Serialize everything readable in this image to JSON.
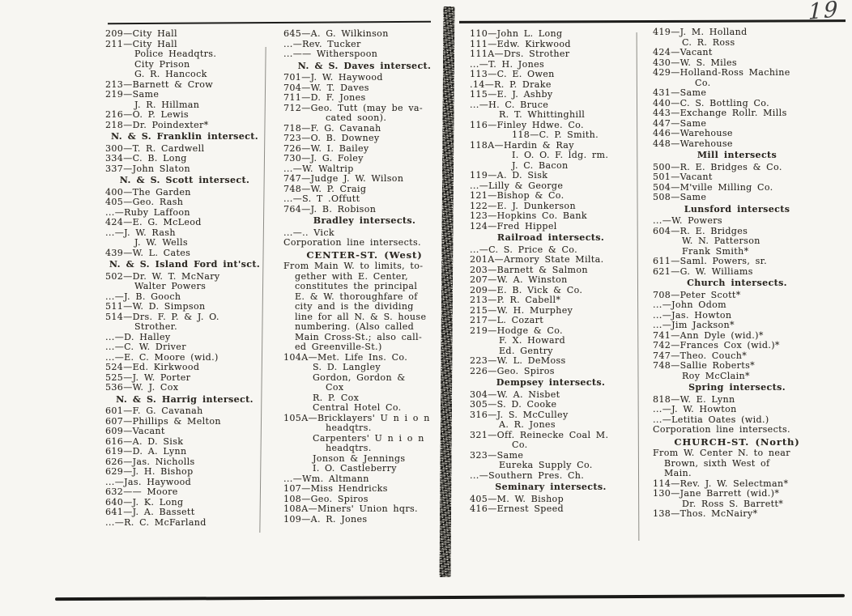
{
  "page_number": "19",
  "document_type": "city directory scanned page spread",
  "colors": {
    "paper": "#f7f6f2",
    "ink": "#2b2721",
    "rule": "#1d1d1b",
    "gutter": "#75736c"
  },
  "columns": [
    {
      "lines": [
        {
          "t": "209—City Hall",
          "s": "e"
        },
        {
          "t": "211—City Hall",
          "s": "e"
        },
        {
          "t": "Police Headqtrs.",
          "s": "c"
        },
        {
          "t": "City Prison",
          "s": "c"
        },
        {
          "t": "G. R. Hancock",
          "s": "c"
        },
        {
          "t": "213—Barnett & Crow",
          "s": "e"
        },
        {
          "t": "219—Same",
          "s": "e"
        },
        {
          "t": "J. R. Hillman",
          "s": "c"
        },
        {
          "t": "216—O. P. Lewis",
          "s": "e"
        },
        {
          "t": "218—Dr. Poindexter*",
          "s": "e"
        },
        {
          "t": "N. & S. Franklin intersect.",
          "s": "b"
        },
        {
          "t": "300—T. R. Cardwell",
          "s": "e"
        },
        {
          "t": "334—C. B. Long",
          "s": "e"
        },
        {
          "t": "337—John Slaton",
          "s": "e"
        },
        {
          "t": "N. & S. Scott intersect.",
          "s": "b"
        },
        {
          "t": "400—The Garden",
          "s": "e"
        },
        {
          "t": "405—Geo. Rash",
          "s": "e"
        },
        {
          "t": "...—Ruby Laffoon",
          "s": "e"
        },
        {
          "t": "424—E. G. McLeod",
          "s": "e"
        },
        {
          "t": "...—J. W. Rash",
          "s": "e"
        },
        {
          "t": "J. W. Wells",
          "s": "c"
        },
        {
          "t": "439—W. L. Cates",
          "s": "e"
        },
        {
          "t": "N. & S. Island Ford int'sct.",
          "s": "b"
        },
        {
          "t": "502—Dr. W. T. McNary",
          "s": "e"
        },
        {
          "t": "Walter Powers",
          "s": "c"
        },
        {
          "t": "...—J. B. Gooch",
          "s": "e"
        },
        {
          "t": "511—W. D. Simpson",
          "s": "e"
        },
        {
          "t": "514—Drs. F. P. & J. O.",
          "s": "e"
        },
        {
          "t": "Strother.",
          "s": "c"
        },
        {
          "t": "...—D. Halley",
          "s": "e"
        },
        {
          "t": "...—C. W. Driver",
          "s": "e"
        },
        {
          "t": "...—E. C. Moore (wid.)",
          "s": "e"
        },
        {
          "t": "524—Ed. Kirkwood",
          "s": "e"
        },
        {
          "t": "525—J. W. Porter",
          "s": "e"
        },
        {
          "t": "536—W. J. Cox",
          "s": "e"
        },
        {
          "t": "N. & S. Harrig intersect.",
          "s": "b"
        },
        {
          "t": "601—F. G. Cavanah",
          "s": "e"
        },
        {
          "t": "607—Phillips & Melton",
          "s": "e"
        },
        {
          "t": "609—Vacant",
          "s": "e"
        },
        {
          "t": "616—A. D. Sisk",
          "s": "e"
        },
        {
          "t": "619—D. A. Lynn",
          "s": "e"
        },
        {
          "t": "626—Jas. Nicholls",
          "s": "e"
        },
        {
          "t": "629—J. H. Bishop",
          "s": "e"
        },
        {
          "t": "...—Jas. Haywood",
          "s": "e"
        },
        {
          "t": "632—— Moore",
          "s": "e"
        },
        {
          "t": "640—J. K. Long",
          "s": "e"
        },
        {
          "t": "641—J. A. Bassett",
          "s": "e"
        },
        {
          "t": "...—R. C. McFarland",
          "s": "e"
        }
      ]
    },
    {
      "lines": [
        {
          "t": "645—A. G. Wilkinson",
          "s": "e"
        },
        {
          "t": "...—Rev. Tucker",
          "s": "e"
        },
        {
          "t": "...—— Witherspoon",
          "s": "e"
        },
        {
          "t": "N. & S. Daves intersect.",
          "s": "b"
        },
        {
          "t": "701—J. W. Haywood",
          "s": "e"
        },
        {
          "t": "704—W. T. Daves",
          "s": "e"
        },
        {
          "t": "711—D. F. Jones",
          "s": "e"
        },
        {
          "t": "712—Geo. Tutt (may be va-",
          "s": "e"
        },
        {
          "t": "cated soon).",
          "s": "c2"
        },
        {
          "t": "718—F. G. Cavanah",
          "s": "e"
        },
        {
          "t": "723—O. B. Downey",
          "s": "e"
        },
        {
          "t": "726—W. I. Bailey",
          "s": "e"
        },
        {
          "t": "730—J. G. Foley",
          "s": "e"
        },
        {
          "t": "...—W. Waltrip",
          "s": "e"
        },
        {
          "t": "747—Judge J. W. Wilson",
          "s": "e"
        },
        {
          "t": "748—W. P. Craig",
          "s": "e"
        },
        {
          "t": "...—S. T .Offutt",
          "s": "e"
        },
        {
          "t": "764—J. B. Robison",
          "s": "e"
        },
        {
          "t": "Bradley intersects.",
          "s": "b"
        },
        {
          "t": "...—.. Vick",
          "s": "e"
        },
        {
          "t": "Corporation line intersects.",
          "s": "p"
        },
        {
          "t": "CENTER-ST. (West)",
          "s": "h"
        },
        {
          "t": "From Main W. to limits, to-",
          "s": "p"
        },
        {
          "t": "gether with E. Center,",
          "s": "pi"
        },
        {
          "t": "constitutes the principal",
          "s": "pi"
        },
        {
          "t": "E. & W. thoroughfare of",
          "s": "pi"
        },
        {
          "t": "city and is the dividing",
          "s": "pi"
        },
        {
          "t": "line for all N. & S. house",
          "s": "pi"
        },
        {
          "t": "numbering. (Also called",
          "s": "pi"
        },
        {
          "t": "Main Cross-St.; also call-",
          "s": "pi"
        },
        {
          "t": "ed Greenville-St.)",
          "s": "pi"
        },
        {
          "t": "104A—Met. Life Ins. Co.",
          "s": "e"
        },
        {
          "t": "S. D. Langley",
          "s": "c"
        },
        {
          "t": "Gordon, Gordon &",
          "s": "c"
        },
        {
          "t": "Cox",
          "s": "c2"
        },
        {
          "t": "R. P. Cox",
          "s": "c"
        },
        {
          "t": "Central Hotel Co.",
          "s": "c"
        },
        {
          "t": "105A—Bricklayers' U n i o n",
          "s": "e"
        },
        {
          "t": "headqtrs.",
          "s": "c2"
        },
        {
          "t": "Carpenters' U n i o n",
          "s": "c"
        },
        {
          "t": "headqtrs.",
          "s": "c2"
        },
        {
          "t": "Jonson & Jennings",
          "s": "c"
        },
        {
          "t": "I. O. Castleberry",
          "s": "c"
        },
        {
          "t": "...—Wm. Altmann",
          "s": "e"
        },
        {
          "t": "107—Miss Hendricks",
          "s": "e"
        },
        {
          "t": "108—Geo. Spiros",
          "s": "e"
        },
        {
          "t": "108A—Miners' Union hqrs.",
          "s": "e"
        },
        {
          "t": "109—A. R. Jones",
          "s": "e"
        }
      ]
    },
    {
      "lines": [
        {
          "t": "110—John L. Long",
          "s": "e"
        },
        {
          "t": "111—Edw. Kirkwood",
          "s": "e"
        },
        {
          "t": "111A—Drs. Strother",
          "s": "e"
        },
        {
          "t": "...—T. H. Jones",
          "s": "e"
        },
        {
          "t": "113—C. E. Owen",
          "s": "e"
        },
        {
          "t": ".14—R. P. Drake",
          "s": "e"
        },
        {
          "t": "115—E. J. Ashby",
          "s": "e"
        },
        {
          "t": "...—H. C. Bruce",
          "s": "e"
        },
        {
          "t": "R. T. Whittinghill",
          "s": "c"
        },
        {
          "t": "116—Finley Hdwe. Co.",
          "s": "e"
        },
        {
          "t": "118—C. P. Smith.",
          "s": "c2"
        },
        {
          "t": "118A—Hardin & Ray",
          "s": "e"
        },
        {
          "t": "I. O. O. F. ldg. rm.",
          "s": "c2"
        },
        {
          "t": "J. C. Bacon",
          "s": "c2"
        },
        {
          "t": "119—A. D. Sisk",
          "s": "e"
        },
        {
          "t": "...—Lilly & George",
          "s": "e"
        },
        {
          "t": "121—Bishop & Co.",
          "s": "e"
        },
        {
          "t": "122—E. J. Dunkerson",
          "s": "e"
        },
        {
          "t": "123—Hopkins Co. Bank",
          "s": "e"
        },
        {
          "t": "124—Fred Hippel",
          "s": "e"
        },
        {
          "t": "Railroad intersects.",
          "s": "b"
        },
        {
          "t": "...—C. S. Price & Co.",
          "s": "e"
        },
        {
          "t": "201A—Armory State Milta.",
          "s": "e"
        },
        {
          "t": "203—Barnett & Salmon",
          "s": "e"
        },
        {
          "t": "207—W. A. Winston",
          "s": "e"
        },
        {
          "t": "209—E. B. Vick & Co.",
          "s": "e"
        },
        {
          "t": "213—P. R. Cabell*",
          "s": "e"
        },
        {
          "t": "215—W. H. Murphey",
          "s": "e"
        },
        {
          "t": "217—L. Cozart",
          "s": "e"
        },
        {
          "t": "219—Hodge & Co.",
          "s": "e"
        },
        {
          "t": "F. X. Howard",
          "s": "c"
        },
        {
          "t": "Ed. Gentry",
          "s": "c"
        },
        {
          "t": "223—W. L. DeMoss",
          "s": "e"
        },
        {
          "t": "226—Geo. Spiros",
          "s": "e"
        },
        {
          "t": "Dempsey intersects.",
          "s": "b"
        },
        {
          "t": "304—W. A. Nisbet",
          "s": "e"
        },
        {
          "t": "305—S. D. Cooke",
          "s": "e"
        },
        {
          "t": "316—J. S. McCulley",
          "s": "e"
        },
        {
          "t": "A. R. Jones",
          "s": "c"
        },
        {
          "t": "321—Off. Reinecke Coal M.",
          "s": "e"
        },
        {
          "t": "Co.",
          "s": "c2"
        },
        {
          "t": "323—Same",
          "s": "e"
        },
        {
          "t": "Eureka Supply Co.",
          "s": "c"
        },
        {
          "t": "...—Southern Pres. Ch.",
          "s": "e"
        },
        {
          "t": "Seminary intersects.",
          "s": "b"
        },
        {
          "t": "405—M. W. Bishop",
          "s": "e"
        },
        {
          "t": "416—Ernest Speed",
          "s": "e"
        }
      ]
    },
    {
      "lines": [
        {
          "t": "419—J. M. Holland",
          "s": "e"
        },
        {
          "t": "C. R. Ross",
          "s": "c"
        },
        {
          "t": "424—Vacant",
          "s": "e"
        },
        {
          "t": "430—W. S. Miles",
          "s": "e"
        },
        {
          "t": "429—Holland-Ross Machine",
          "s": "e"
        },
        {
          "t": "Co.",
          "s": "c2"
        },
        {
          "t": "431—Same",
          "s": "e"
        },
        {
          "t": "440—C. S. Bottling Co.",
          "s": "e"
        },
        {
          "t": "443—Exchange Rollr. Mills",
          "s": "e"
        },
        {
          "t": "447—Same",
          "s": "e"
        },
        {
          "t": "446—Warehouse",
          "s": "e"
        },
        {
          "t": "448—Warehouse",
          "s": "e"
        },
        {
          "t": "Mill intersects",
          "s": "b"
        },
        {
          "t": "500—R. E. Bridges & Co.",
          "s": "e"
        },
        {
          "t": "501—Vacant",
          "s": "e"
        },
        {
          "t": "504—M'ville Milling Co.",
          "s": "e"
        },
        {
          "t": "508—Same",
          "s": "e"
        },
        {
          "t": "Lunsford intersects",
          "s": "b"
        },
        {
          "t": "...—W. Powers",
          "s": "e"
        },
        {
          "t": "604—R. E. Bridges",
          "s": "e"
        },
        {
          "t": "W. N. Patterson",
          "s": "c"
        },
        {
          "t": "Frank Smith*",
          "s": "c"
        },
        {
          "t": "611—Saml. Powers, sr.",
          "s": "e"
        },
        {
          "t": "621—G. W. Williams",
          "s": "e"
        },
        {
          "t": "Church intersects.",
          "s": "b"
        },
        {
          "t": "708—Peter Scott*",
          "s": "e"
        },
        {
          "t": "...—John Odom",
          "s": "e"
        },
        {
          "t": "...—Jas. Howton",
          "s": "e"
        },
        {
          "t": "...—Jim Jackson*",
          "s": "e"
        },
        {
          "t": "741—Ann Dyle (wid.)*",
          "s": "e"
        },
        {
          "t": "742—Frances Cox (wid.)*",
          "s": "e"
        },
        {
          "t": "747—Theo. Couch*",
          "s": "e"
        },
        {
          "t": "748—Sallie Roberts*",
          "s": "e"
        },
        {
          "t": "Roy McClain*",
          "s": "c"
        },
        {
          "t": "Spring intersects.",
          "s": "b"
        },
        {
          "t": "818—W. E. Lynn",
          "s": "e"
        },
        {
          "t": "...—J. W. Howton",
          "s": "e"
        },
        {
          "t": "...—Letitia Oates (wid.)",
          "s": "e"
        },
        {
          "t": "Corporation line intersects.",
          "s": "p"
        },
        {
          "t": "CHURCH-ST. (North)",
          "s": "h"
        },
        {
          "t": "From W. Center N. to near",
          "s": "p"
        },
        {
          "t": "Brown, sixth West of",
          "s": "pi"
        },
        {
          "t": "Main.",
          "s": "pi"
        },
        {
          "t": "114—Rev. J. W. Selectman*",
          "s": "e"
        },
        {
          "t": "130—Jane Barrett (wid.)*",
          "s": "e"
        },
        {
          "t": "Dr. Ross S. Barrett*",
          "s": "c"
        },
        {
          "t": "138—Thos. McNairy*",
          "s": "e"
        }
      ]
    }
  ]
}
